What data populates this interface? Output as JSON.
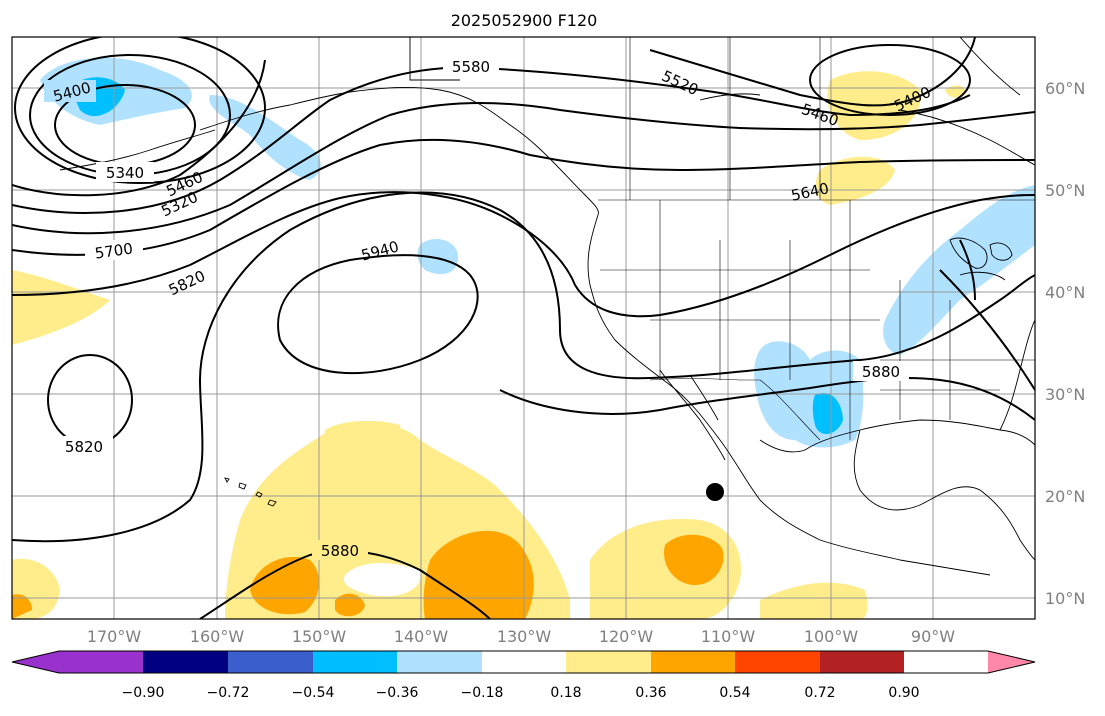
{
  "title": "2025052900 F120",
  "lat_labels": [
    "60°N",
    "50°N",
    "40°N",
    "30°N",
    "20°N",
    "10°N"
  ],
  "lon_labels": [
    "170°W",
    "160°W",
    "150°W",
    "140°W",
    "130°W",
    "120°W",
    "110°W",
    "100°W",
    "90°W"
  ],
  "contour_labels": [
    "5400",
    "5340",
    "5460",
    "5320",
    "5700",
    "5820",
    "5940",
    "5820",
    "5880",
    "5580",
    "5520",
    "5460",
    "5400",
    "5640",
    "5880"
  ],
  "colorbar": {
    "ticks": [
      "−0.90",
      "−0.72",
      "−0.54",
      "−0.36",
      "−0.18",
      "0.18",
      "0.36",
      "0.54",
      "0.72",
      "0.90"
    ],
    "colors": [
      "#9932cc",
      "#000080",
      "#3a5fcd",
      "#00bfff",
      "#b0e2ff",
      "#ffffff",
      "#ffec8b",
      "#ffa500",
      "#ff4500",
      "#b22222",
      "#ff88aa"
    ]
  },
  "shading_colors": {
    "light_blue": "#b0e2ff",
    "blue": "#00bfff",
    "yellow": "#ffec8b",
    "orange": "#ffa500"
  },
  "marker": "storm-center-dot"
}
